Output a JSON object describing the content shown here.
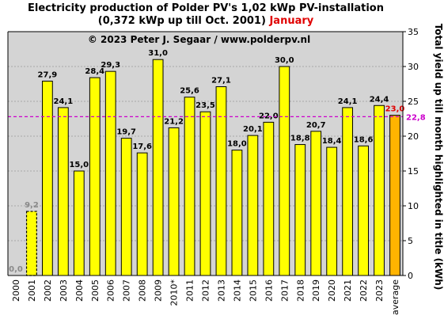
{
  "header": {
    "title_line1": "Electricity production  of Polder  PV's  1,02 kWp PV-installation",
    "title_line2": "(0,372 kWp up till Oct. 2001)",
    "month": "January"
  },
  "colors": {
    "plot_background": "#d4d4d4",
    "bar": "#ffff00",
    "bar_average": "#ffb400",
    "bar_outline": "#000000",
    "average_line": "#cc00cc",
    "highlight_text": "#e00000"
  },
  "chart_data": {
    "type": "bar",
    "title": "Electricity production  of Polder  PV's  1,02 kWp PV-installation (0,372 kWp up till Oct. 2001) January",
    "copyright": "© 2023 Peter J. Segaar / www.polderpv.nl",
    "categories": [
      "2000",
      "2001",
      "2002",
      "2003",
      "2004",
      "2005",
      "2006",
      "2007",
      "2008",
      "2009",
      "2010*",
      "2011",
      "2012",
      "2013",
      "2014",
      "2015",
      "2016",
      "2017",
      "2018",
      "2019",
      "2020",
      "2021",
      "2022",
      "2023",
      "average"
    ],
    "values": [
      0.0,
      9.2,
      27.9,
      24.1,
      15.0,
      28.4,
      29.3,
      19.7,
      17.6,
      31.0,
      21.2,
      25.6,
      23.5,
      27.1,
      18.0,
      20.1,
      22.0,
      30.0,
      18.8,
      20.7,
      18.4,
      24.1,
      18.6,
      24.4,
      23.0
    ],
    "value_labels": [
      "0,0",
      "9,2",
      "27,9",
      "24,1",
      "15,0",
      "28,4",
      "29,3",
      "19,7",
      "17,6",
      "31,0",
      "21,2",
      "25,6",
      "23,5",
      "27,1",
      "18,0",
      "20,1",
      "22,0",
      "30,0",
      "18,8",
      "20,7",
      "18,4",
      "24,1",
      "18,6",
      "24,4",
      "23,0"
    ],
    "bar_styles": [
      "partial",
      "partial",
      "normal",
      "normal",
      "normal",
      "normal",
      "normal",
      "normal",
      "normal",
      "normal",
      "normal",
      "normal",
      "normal",
      "normal",
      "normal",
      "normal",
      "normal",
      "normal",
      "normal",
      "normal",
      "normal",
      "normal",
      "normal",
      "normal",
      "average"
    ],
    "reference_line": {
      "value": 22.8,
      "label": "22,8"
    },
    "ylabel": "Total yield up till month highlighted in title (kWh)",
    "y_axis_side": "right",
    "ylim": [
      0,
      35
    ],
    "yticks": [
      0,
      5,
      10,
      15,
      20,
      25,
      30,
      35
    ],
    "grid": true
  }
}
